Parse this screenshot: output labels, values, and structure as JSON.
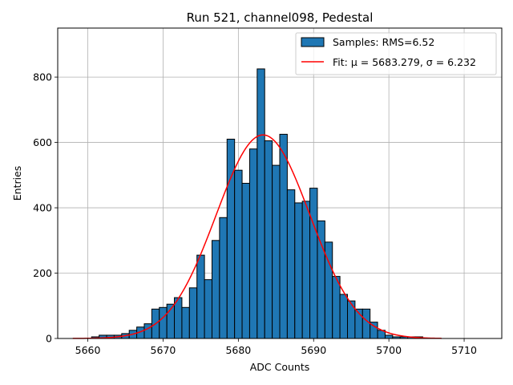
{
  "chart_data": {
    "type": "bar",
    "title": "Run 521, channel098, Pedestal",
    "xlabel": "ADC Counts",
    "ylabel": "Entries",
    "xlim": [
      5656,
      5715
    ],
    "ylim": [
      0,
      950
    ],
    "xticks": [
      5660,
      5670,
      5680,
      5690,
      5700,
      5710
    ],
    "yticks": [
      0,
      200,
      400,
      600,
      800
    ],
    "grid": true,
    "legend_position": "top-right",
    "bar_color": "#1f77b4",
    "bar_edge_color": "#000000",
    "fit_color": "#ff0000",
    "histogram": {
      "name": "Samples: RMS=6.52",
      "bin_width": 1,
      "bin_centers": [
        5661,
        5662,
        5663,
        5664,
        5665,
        5666,
        5667,
        5668,
        5669,
        5670,
        5671,
        5672,
        5673,
        5674,
        5675,
        5676,
        5677,
        5678,
        5679,
        5680,
        5681,
        5682,
        5683,
        5684,
        5685,
        5686,
        5687,
        5688,
        5689,
        5690,
        5691,
        5692,
        5693,
        5694,
        5695,
        5696,
        5697,
        5698,
        5699,
        5700,
        5701,
        5702,
        5703,
        5704
      ],
      "counts": [
        5,
        10,
        10,
        10,
        15,
        25,
        35,
        45,
        90,
        95,
        105,
        125,
        95,
        155,
        255,
        180,
        300,
        370,
        610,
        515,
        475,
        580,
        825,
        605,
        530,
        625,
        455,
        415,
        420,
        460,
        360,
        295,
        190,
        135,
        115,
        90,
        90,
        50,
        25,
        10,
        5,
        5,
        5,
        5
      ]
    },
    "fit": {
      "name": "Fit: μ = 5683.279, σ = 6.232",
      "mu": 5683.279,
      "sigma": 6.232,
      "amplitude": 623,
      "x_range": [
        5658,
        5707
      ]
    }
  }
}
